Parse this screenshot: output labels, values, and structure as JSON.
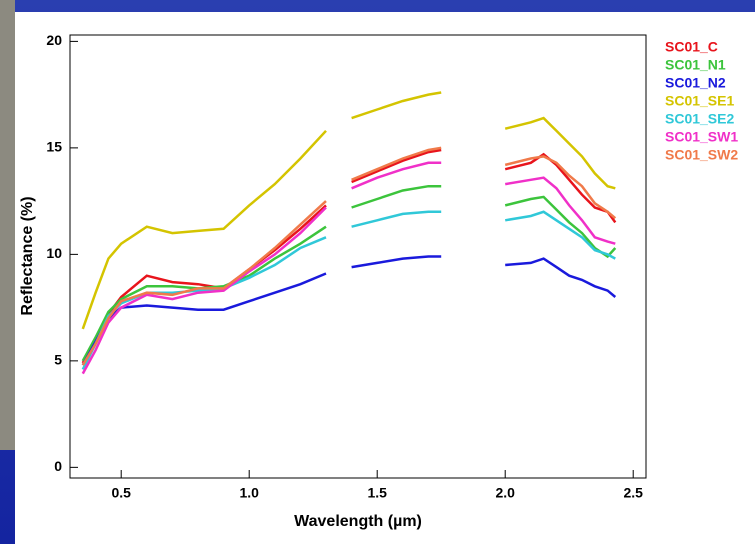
{
  "chart_data": {
    "type": "line",
    "x_label": "Wavelength (µm)",
    "y_label": "Reflectance (%)",
    "x": [
      0.35,
      0.4,
      0.45,
      0.5,
      0.6,
      0.7,
      0.8,
      0.9,
      1.0,
      1.1,
      1.2,
      1.3,
      1.35,
      1.4,
      1.5,
      1.6,
      1.7,
      1.75,
      1.85,
      2.0,
      2.1,
      2.15,
      2.2,
      2.25,
      2.3,
      2.35,
      2.4,
      2.43
    ],
    "xlim": [
      0.3,
      2.55
    ],
    "xticks": [
      0.5,
      {
        "value": 1,
        "label": "1.0"
      },
      1.5,
      {
        "value": 2,
        "label": "2.0"
      },
      2.5
    ],
    "ylim": [
      -0.5,
      20.3
    ],
    "yticks": [
      0,
      5,
      10,
      15,
      20
    ],
    "legend": "right",
    "series": [
      {
        "name": "SC01_C",
        "color": "#e8141c",
        "values": [
          4.9,
          6.0,
          7.2,
          8.0,
          9.0,
          8.7,
          8.6,
          8.4,
          9.3,
          10.2,
          11.2,
          12.3,
          null,
          13.4,
          13.9,
          14.4,
          14.8,
          14.9,
          null,
          14.0,
          14.3,
          14.7,
          14.2,
          13.5,
          12.8,
          12.2,
          12.0,
          11.5
        ]
      },
      {
        "name": "SC01_N1",
        "color": "#3cc43c",
        "values": [
          5.0,
          6.1,
          7.3,
          7.9,
          8.5,
          8.5,
          8.4,
          8.5,
          9.0,
          9.8,
          10.5,
          11.3,
          null,
          12.2,
          12.6,
          13.0,
          13.2,
          13.2,
          null,
          12.3,
          12.6,
          12.7,
          12.1,
          11.5,
          11.0,
          10.3,
          9.9,
          10.3
        ]
      },
      {
        "name": "SC01_N2",
        "color": "#1a1adc",
        "values": [
          4.8,
          5.9,
          7.0,
          7.5,
          7.6,
          7.5,
          7.4,
          7.4,
          7.8,
          8.2,
          8.6,
          9.1,
          null,
          9.4,
          9.6,
          9.8,
          9.9,
          9.9,
          null,
          9.5,
          9.6,
          9.8,
          9.4,
          9.0,
          8.8,
          8.5,
          8.3,
          8.0
        ]
      },
      {
        "name": "SC01_SE1",
        "color": "#d4c400",
        "values": [
          6.5,
          8.2,
          9.8,
          10.5,
          11.3,
          11.0,
          11.1,
          11.2,
          12.3,
          13.3,
          14.5,
          15.8,
          null,
          16.4,
          16.8,
          17.2,
          17.5,
          17.6,
          null,
          15.9,
          16.2,
          16.4,
          15.8,
          15.2,
          14.6,
          13.8,
          13.2,
          13.1
        ]
      },
      {
        "name": "SC01_SE2",
        "color": "#30c8d8",
        "values": [
          4.6,
          5.8,
          7.1,
          7.7,
          8.2,
          8.2,
          8.3,
          8.4,
          8.9,
          9.5,
          10.3,
          10.8,
          null,
          11.3,
          11.6,
          11.9,
          12.0,
          12.0,
          null,
          11.6,
          11.8,
          12.0,
          11.6,
          11.2,
          10.8,
          10.2,
          10.0,
          9.8
        ]
      },
      {
        "name": "SC01_SW1",
        "color": "#f030c8",
        "values": [
          4.4,
          5.5,
          6.8,
          7.5,
          8.1,
          7.9,
          8.2,
          8.3,
          9.2,
          10.0,
          11.0,
          12.2,
          null,
          13.1,
          13.6,
          14.0,
          14.3,
          14.3,
          null,
          13.3,
          13.5,
          13.6,
          13.1,
          12.3,
          11.6,
          10.8,
          10.6,
          10.5
        ]
      },
      {
        "name": "SC01_SW2",
        "color": "#f07a4a",
        "values": [
          4.8,
          5.8,
          7.0,
          7.8,
          8.2,
          8.1,
          8.4,
          8.4,
          9.3,
          10.3,
          11.4,
          12.5,
          null,
          13.5,
          14.0,
          14.5,
          14.9,
          15.0,
          null,
          14.2,
          14.5,
          14.6,
          14.3,
          13.7,
          13.2,
          12.4,
          12.0,
          11.7
        ]
      }
    ]
  }
}
